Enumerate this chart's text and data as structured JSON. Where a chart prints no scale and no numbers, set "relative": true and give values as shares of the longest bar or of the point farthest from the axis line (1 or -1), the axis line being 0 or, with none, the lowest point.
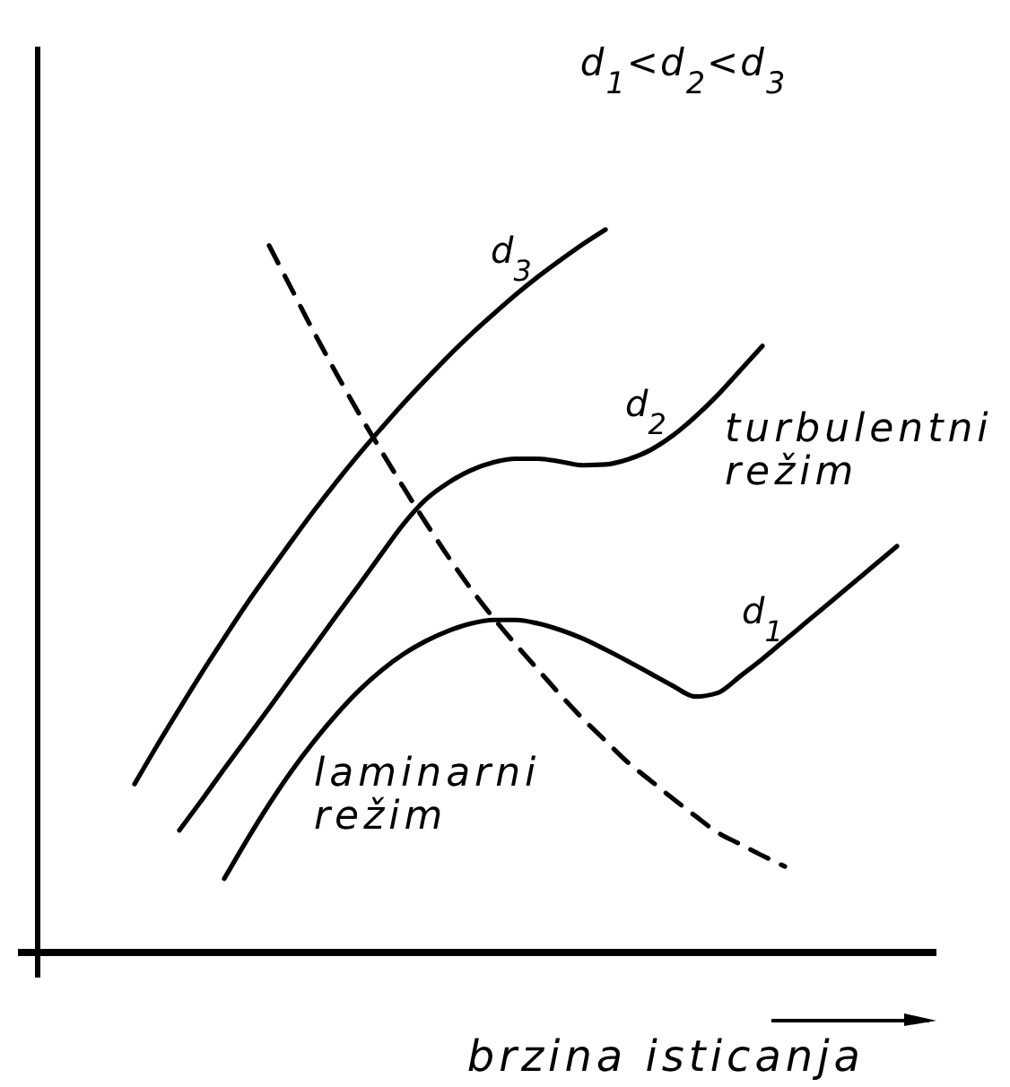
{
  "chart_data": {
    "type": "line",
    "relative": true,
    "xlabel": "brzina isticanja",
    "categories": [
      null,
      null,
      null,
      null,
      null,
      null,
      null,
      null,
      null,
      null,
      null,
      null,
      null,
      null,
      null,
      null,
      null,
      null,
      null,
      null,
      null,
      null,
      null,
      null,
      null,
      null,
      null,
      null,
      null,
      null,
      null,
      null,
      null,
      null,
      null
    ],
    "series": [
      {
        "name": "d$_{3}$",
        "color": "#000000",
        "line_style": "solid",
        "values": [
          0.233,
          0.286,
          0.337,
          0.387,
          0.435,
          0.482,
          0.526,
          0.569,
          0.611,
          0.651,
          0.689,
          0.725,
          0.76,
          0.793,
          0.825,
          0.855,
          0.883,
          0.91,
          0.935,
          0.958,
          0.98,
          1.0,
          null,
          null,
          null,
          null,
          null,
          null,
          null,
          null,
          null,
          null,
          null,
          null,
          null
        ]
      },
      {
        "name": "d$_{2}$",
        "color": "#000000",
        "line_style": "solid",
        "values": [
          null,
          null,
          0.169,
          0.211,
          0.254,
          0.296,
          0.338,
          0.381,
          0.423,
          0.466,
          0.508,
          0.551,
          0.593,
          0.627,
          0.65,
          0.667,
          0.678,
          0.683,
          0.683,
          0.679,
          0.674,
          0.675,
          0.682,
          0.695,
          0.715,
          0.741,
          0.771,
          0.805,
          0.839,
          null,
          null,
          null,
          null,
          null,
          null
        ]
      },
      {
        "name": "d$_{1}$",
        "color": "#000000",
        "line_style": "solid",
        "values": [
          null,
          null,
          null,
          null,
          0.102,
          0.155,
          0.205,
          0.251,
          0.292,
          0.329,
          0.362,
          0.39,
          0.413,
          0.431,
          0.445,
          0.455,
          0.46,
          0.46,
          0.455,
          0.446,
          0.434,
          0.419,
          0.403,
          0.386,
          0.369,
          0.354,
          0.359,
          0.382,
          0.406,
          0.432,
          0.458,
          0.484,
          0.51,
          0.536,
          0.562
        ]
      },
      {
        "color": "#000000",
        "line_style": "dashed",
        "values": [
          null,
          null,
          null,
          null,
          null,
          null,
          0.978,
          0.918,
          0.858,
          0.801,
          0.746,
          0.694,
          0.643,
          0.594,
          0.547,
          0.503,
          0.463,
          0.426,
          0.391,
          0.356,
          0.323,
          0.293,
          0.263,
          0.238,
          0.213,
          0.189,
          0.166,
          0.15,
          0.134,
          0.119,
          null,
          null,
          null,
          null,
          null
        ]
      }
    ],
    "annotations": [
      "d$_{1}$<d$_{2}$<d$_{3}$",
      "turbulentni režim",
      "laminarni režim"
    ]
  }
}
